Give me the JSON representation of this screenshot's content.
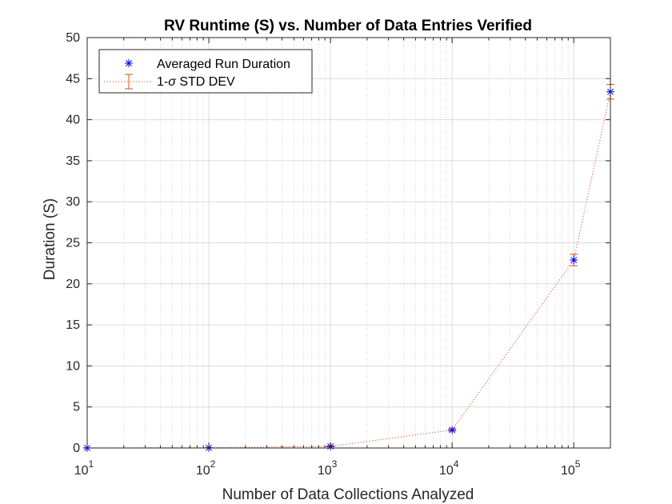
{
  "chart_data": {
    "type": "scatter",
    "title": "RV Runtime (S) vs. Number of Data Entries Verified",
    "xlabel": "Number of Data Collections Analyzed",
    "ylabel": "Duration (S)",
    "xscale": "log",
    "xlim": [
      10,
      200000
    ],
    "ylim": [
      0,
      50
    ],
    "grid": true,
    "minor_grid_x": true,
    "legend_position": "top-left",
    "x_ticks": [
      {
        "value": 10,
        "base": "10",
        "exp": "1"
      },
      {
        "value": 100,
        "base": "10",
        "exp": "2"
      },
      {
        "value": 1000,
        "base": "10",
        "exp": "3"
      },
      {
        "value": 10000,
        "base": "10",
        "exp": "4"
      },
      {
        "value": 100000,
        "base": "10",
        "exp": "5"
      }
    ],
    "y_ticks": [
      {
        "value": 0,
        "label": "0"
      },
      {
        "value": 5,
        "label": "5"
      },
      {
        "value": 10,
        "label": "10"
      },
      {
        "value": 15,
        "label": "15"
      },
      {
        "value": 20,
        "label": "20"
      },
      {
        "value": 25,
        "label": "25"
      },
      {
        "value": 30,
        "label": "30"
      },
      {
        "value": 35,
        "label": "35"
      },
      {
        "value": 40,
        "label": "40"
      },
      {
        "value": 45,
        "label": "45"
      },
      {
        "value": 50,
        "label": "50"
      }
    ],
    "series": [
      {
        "name": "Averaged Run Duration",
        "marker": "asterisk",
        "color": "#0000ff",
        "x": [
          10,
          100,
          1000,
          10000,
          100000,
          200000
        ],
        "y": [
          0.01,
          0.03,
          0.2,
          2.2,
          22.9,
          43.4
        ]
      },
      {
        "name": "1-σ STD DEV",
        "style": "errorbar-dotted",
        "color": "#d95319",
        "x": [
          10,
          100,
          1000,
          10000,
          100000,
          200000
        ],
        "y": [
          0.01,
          0.03,
          0.2,
          2.2,
          22.9,
          43.4
        ],
        "err": [
          0.01,
          0.02,
          0.05,
          0.15,
          0.7,
          0.9
        ]
      }
    ],
    "legend": {
      "items": [
        {
          "label": "Averaged Run Duration",
          "symbol": "asterisk"
        },
        {
          "label_prefix": "1-",
          "label_sigma": "σ",
          "label_suffix": " STD DEV",
          "symbol": "errorbar"
        }
      ]
    }
  }
}
